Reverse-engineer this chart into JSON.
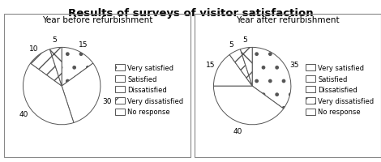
{
  "title": "Results of surveys of visitor satisfaction",
  "chart1_title": "Year before refurbishment",
  "chart2_title": "Year after refurbishment",
  "labels": [
    "Very satisfied",
    "Satisfied",
    "Dissatisfied",
    "Very dissatisfied",
    "No response"
  ],
  "before_values": [
    15,
    30,
    40,
    10,
    5
  ],
  "after_values": [
    35,
    40,
    15,
    5,
    5
  ],
  "hatch_styles": [
    ".",
    "--",
    "++",
    "//",
    "x+"
  ],
  "edge_color": "#555555",
  "bg_color": "#ffffff",
  "title_fontsize": 9.5,
  "subtitle_fontsize": 7.5,
  "label_fontsize": 6.5,
  "legend_fontsize": 6.0
}
